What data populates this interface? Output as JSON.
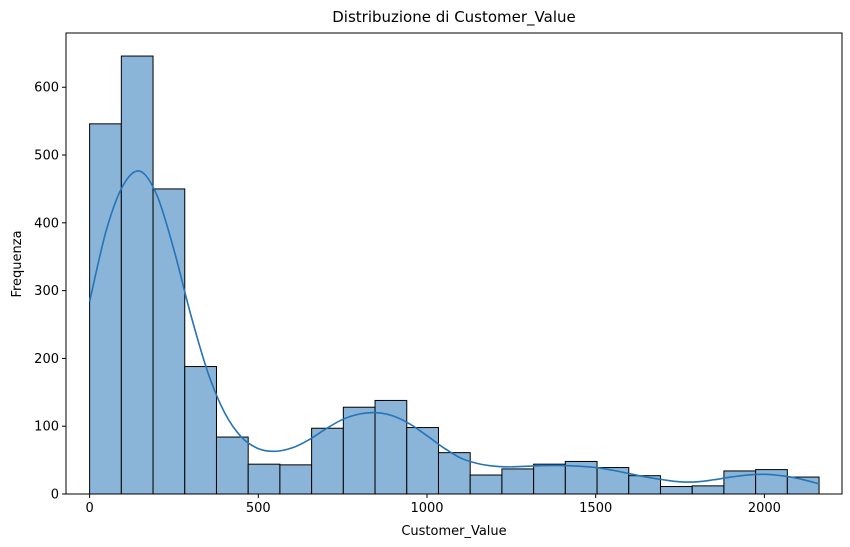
{
  "chart_data": {
    "type": "bar",
    "title": "Distribuzione di Customer_Value",
    "xlabel": "Customer_Value",
    "ylabel": "Frequenza",
    "xlim": [
      -70,
      2230
    ],
    "ylim": [
      0,
      680
    ],
    "xticks": [
      0,
      500,
      1000,
      1500,
      2000
    ],
    "yticks": [
      0,
      100,
      200,
      300,
      400,
      500,
      600
    ],
    "bin_edges": [
      0,
      94,
      188,
      282,
      376,
      470,
      564,
      658,
      752,
      846,
      940,
      1034,
      1128,
      1222,
      1316,
      1410,
      1504,
      1598,
      1692,
      1786,
      1880,
      1974,
      2068,
      2162
    ],
    "values": [
      546,
      646,
      450,
      188,
      84,
      44,
      43,
      97,
      128,
      138,
      98,
      61,
      28,
      37,
      44,
      48,
      39,
      27,
      11,
      12,
      34,
      36,
      25
    ],
    "kde": {
      "x": [
        0,
        50,
        100,
        150,
        200,
        250,
        300,
        350,
        400,
        450,
        500,
        550,
        600,
        650,
        700,
        750,
        800,
        850,
        900,
        950,
        1000,
        1050,
        1100,
        1150,
        1200,
        1250,
        1300,
        1350,
        1400,
        1450,
        1500,
        1550,
        1600,
        1650,
        1700,
        1750,
        1800,
        1850,
        1900,
        1950,
        2000,
        2050,
        2100,
        2162
      ],
      "y": [
        284,
        390,
        456,
        476,
        440,
        360,
        264,
        180,
        120,
        84,
        67,
        63,
        68,
        80,
        96,
        110,
        118,
        120,
        115,
        103,
        86,
        68,
        53,
        45,
        41,
        40,
        41,
        42,
        42,
        41,
        39,
        35,
        30,
        25,
        21,
        18,
        18,
        21,
        25,
        28,
        29,
        27,
        23,
        15
      ]
    },
    "bar_color": "#8ab5d8",
    "bar_edge_color": "#000000",
    "line_color": "#2573b8",
    "grid": false,
    "legend": "none"
  }
}
